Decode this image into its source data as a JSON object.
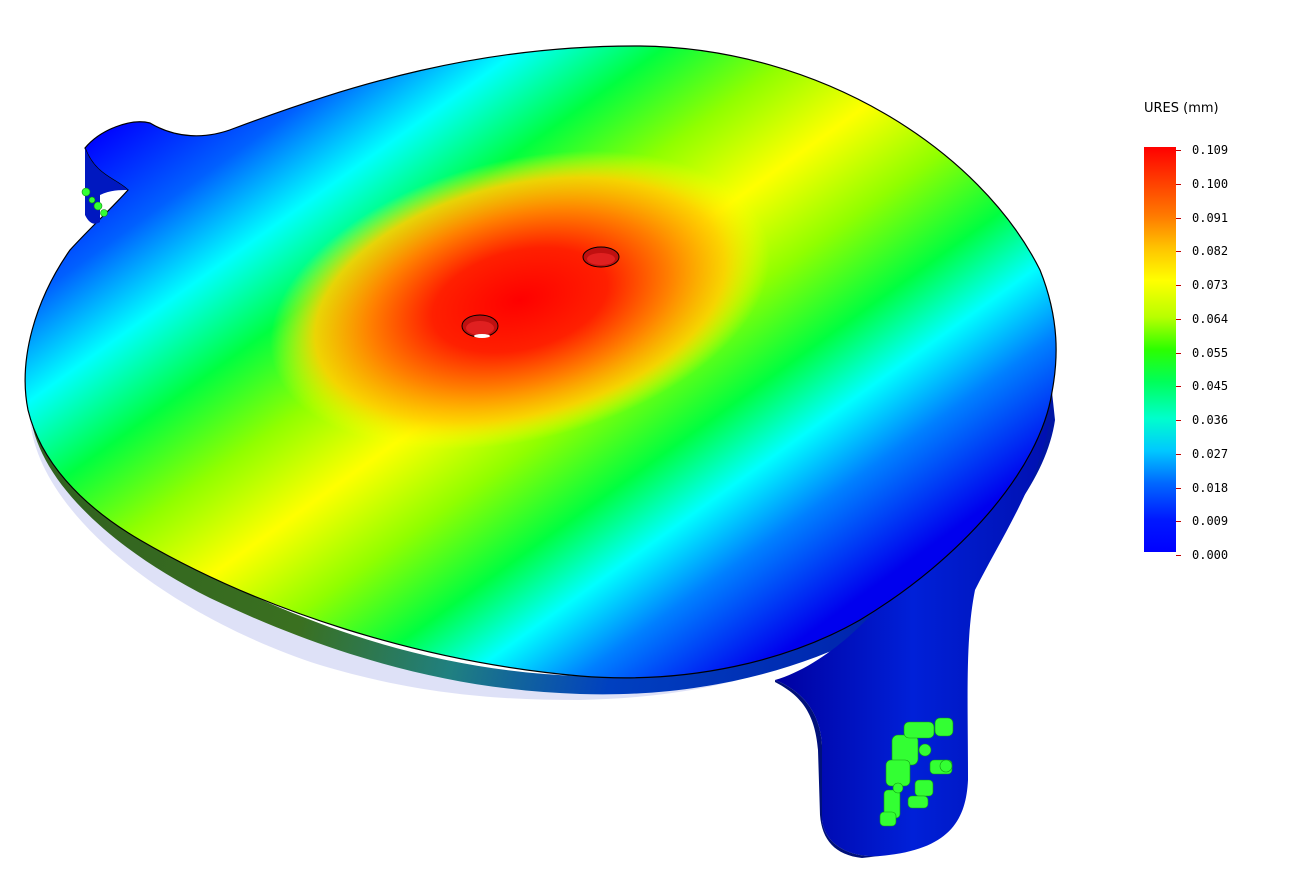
{
  "legend": {
    "title": "URES (mm)",
    "min": 0.0,
    "max": 0.109,
    "labels": [
      "0.109",
      "0.100",
      "0.091",
      "0.082",
      "0.073",
      "0.064",
      "0.055",
      "0.045",
      "0.036",
      "0.027",
      "0.018",
      "0.009",
      "0.000"
    ]
  },
  "colors": {
    "max": "#ff0000",
    "high": "#ffff00",
    "mid": "#00ff00",
    "low_mid": "#00ffff",
    "min": "#0000ff",
    "fixture": "#33ff33"
  }
}
